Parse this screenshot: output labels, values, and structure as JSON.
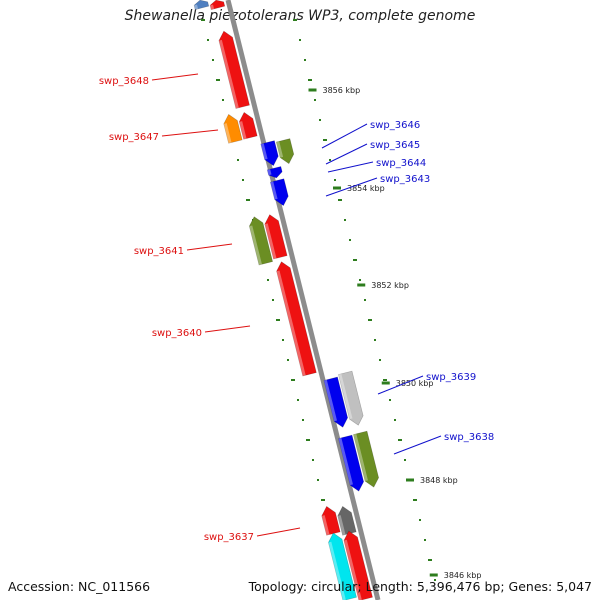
{
  "title": "Shewanella piezotolerans WP3, complete genome",
  "footer": {
    "accession": "Accession: NC_011566",
    "summary": "Topology: circular; Length: 5,396,476 bp; Genes: 5,047"
  },
  "colors": {
    "backbone": "#8c8c8c",
    "ticks": "#2e7d1e",
    "strand_minus_label": "#dd1111",
    "strand_plus_label": "#1111cc"
  },
  "ticks": [
    {
      "label": "3856 kbp"
    },
    {
      "label": "3854 kbp"
    },
    {
      "label": "3852 kbp"
    },
    {
      "label": "3850 kbp"
    },
    {
      "label": "3848 kbp"
    },
    {
      "label": "3846 kbp"
    }
  ],
  "genes": [
    {
      "label": "swp_3648",
      "color": "#ee1111",
      "strand": "-"
    },
    {
      "label": "swp_3647",
      "color": "#ee1111",
      "strand": "-"
    },
    {
      "label": "",
      "color": "#ff8c00",
      "strand": "-"
    },
    {
      "label": "swp_3646",
      "color": "#6b8e23",
      "strand": "+"
    },
    {
      "label": "swp_3645",
      "color": "#0000ee",
      "strand": "+"
    },
    {
      "label": "swp_3644",
      "color": "#0000ee",
      "strand": "+"
    },
    {
      "label": "swp_3643",
      "color": "#0000ee",
      "strand": "+"
    },
    {
      "label": "swp_3641",
      "color": "#6b8e23",
      "strand": "-"
    },
    {
      "label": "",
      "color": "#ee1111",
      "strand": "-"
    },
    {
      "label": "swp_3640",
      "color": "#ee1111",
      "strand": "-"
    },
    {
      "label": "swp_3639",
      "color": "#0000ee",
      "strand": "+"
    },
    {
      "label": "",
      "color": "#c0c0c0",
      "strand": "+"
    },
    {
      "label": "swp_3638",
      "color": "#0000ee",
      "strand": "+"
    },
    {
      "label": "",
      "color": "#6b8e23",
      "strand": "+"
    },
    {
      "label": "swp_3637",
      "color": "#ee1111",
      "strand": "-"
    },
    {
      "label": "",
      "color": "#666666",
      "strand": "-"
    },
    {
      "label": "",
      "color": "#00e5ee",
      "strand": "-"
    },
    {
      "label": "",
      "color": "#ee1111",
      "strand": "-"
    },
    {
      "label": "",
      "color": "#4f7fc0",
      "strand": "-"
    },
    {
      "label": "",
      "color": "#ee1111",
      "strand": "-"
    }
  ]
}
